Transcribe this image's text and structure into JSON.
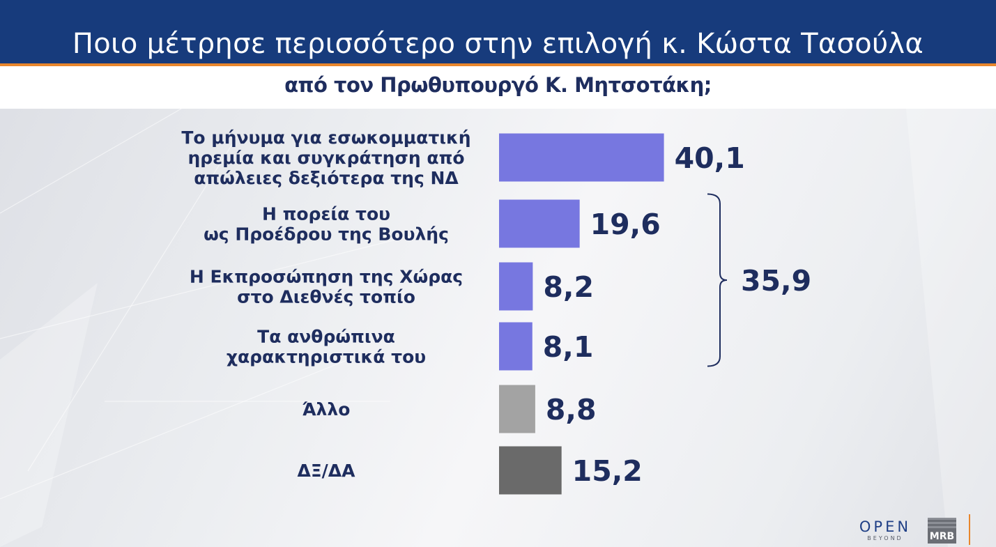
{
  "header": {
    "title": "Ποιο μέτρησε περισσότερο στην επιλογή κ. Κώστα Τασούλα",
    "subtitle": "από τον Πρωθυπουργό Κ. Μητσοτάκη;"
  },
  "chart_data": {
    "type": "bar",
    "orientation": "horizontal",
    "title": "Ποιο μέτρησε περισσότερο στην επιλογή κ. Κώστα Τασούλα από τον Πρωθυπουργό Κ. Μητσοτάκη;",
    "categories": [
      [
        "Το μήνυμα για εσωκομματική",
        "ηρεμία και συγκράτηση από",
        "απώλειες δεξιότερα της ΝΔ"
      ],
      [
        "Η πορεία του",
        "ως Προέδρου της Βουλής"
      ],
      [
        "Η Εκπροσώπηση της Χώρας",
        "στο Διεθνές τοπίο"
      ],
      [
        "Τα ανθρώπινα",
        "χαρακτηριστικά του"
      ],
      [
        "Άλλο"
      ],
      [
        "ΔΞ/ΔΑ"
      ]
    ],
    "values": [
      40.1,
      19.6,
      8.2,
      8.1,
      8.8,
      15.2
    ],
    "value_labels": [
      "40,1",
      "19,6",
      "8,2",
      "8,1",
      "8,8",
      "15,2"
    ],
    "bar_colors": [
      "#7777e0",
      "#7777e0",
      "#7777e0",
      "#7777e0",
      "#a3a3a3",
      "#6a6a6a"
    ],
    "bracket": {
      "from_index": 1,
      "to_index": 3,
      "label": "35,9",
      "value": 35.9
    },
    "xlim": [
      0,
      100
    ],
    "grid": false,
    "legend": "none"
  },
  "logos": {
    "open": "OPEN",
    "open_sub": "BEYOND",
    "mrb": "MRB"
  },
  "colors": {
    "header_bg": "#173b7c",
    "accent": "#e8862c",
    "text_dark": "#1e2d5e",
    "bar_main": "#7777e0"
  }
}
